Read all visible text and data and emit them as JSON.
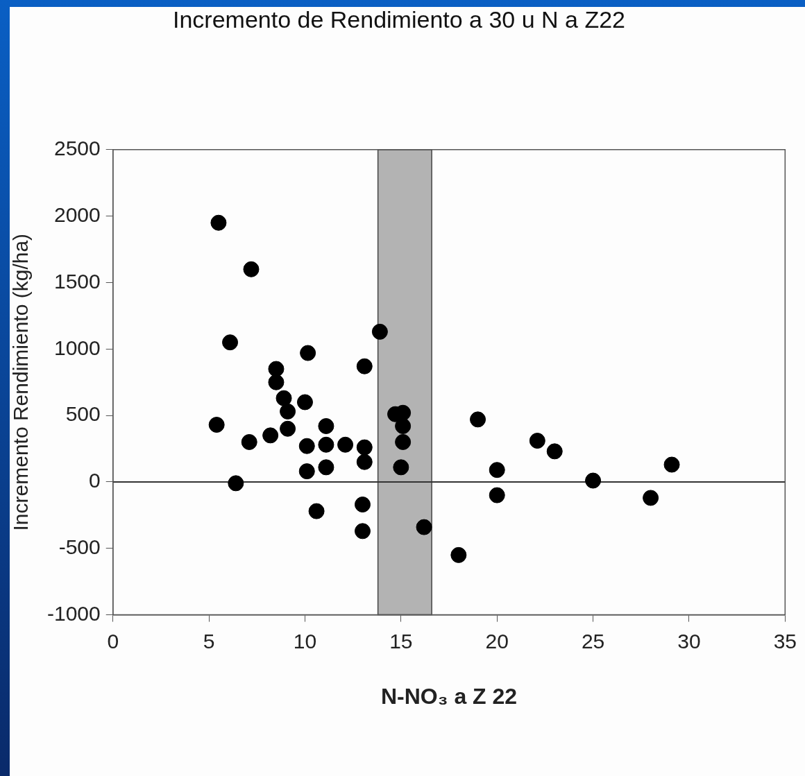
{
  "chart_data": {
    "type": "scatter",
    "title": "Incremento de Rendimiento a 30 u N a Z22",
    "xlabel": "N-NO₃ a Z 22",
    "ylabel": "Incremento Rendimiento (kg/ha)",
    "x": [
      5.5,
      7.2,
      6.1,
      5.4,
      6.4,
      7.1,
      8.2,
      8.5,
      8.5,
      8.9,
      9.1,
      9.1,
      10.0,
      10.15,
      10.1,
      10.1,
      10.6,
      11.1,
      11.1,
      11.1,
      12.1,
      13.1,
      13.1,
      13.1,
      13.0,
      13.0,
      13.9,
      14.7,
      15.1,
      15.1,
      15.1,
      15.0,
      16.2,
      18.0,
      19.0,
      20.0,
      20.0,
      22.1,
      23.0,
      25.0,
      28.0,
      29.1
    ],
    "values": [
      1950,
      1600,
      1050,
      430,
      -10,
      300,
      350,
      850,
      750,
      630,
      530,
      400,
      600,
      970,
      270,
      80,
      -220,
      420,
      280,
      110,
      280,
      870,
      260,
      150,
      -170,
      -370,
      1130,
      510,
      520,
      420,
      300,
      110,
      -340,
      -550,
      470,
      90,
      -100,
      310,
      230,
      10,
      -120,
      130
    ],
    "color": "#000000",
    "marker": "circle",
    "xlim": [
      0,
      35
    ],
    "xticks": [
      0,
      5,
      10,
      15,
      20,
      25,
      30,
      35
    ],
    "ylim": [
      -1000,
      2500
    ],
    "yticks": [
      -1000,
      -500,
      0,
      500,
      1000,
      1500,
      2000,
      2500
    ],
    "grid": false,
    "legend": false,
    "bands": [
      {
        "axis": "x",
        "from": 13.8,
        "to": 16.6,
        "color": "#b3b3b3"
      }
    ],
    "ref_lines": [
      {
        "axis": "y",
        "value": 0,
        "color": "#333333"
      }
    ]
  }
}
